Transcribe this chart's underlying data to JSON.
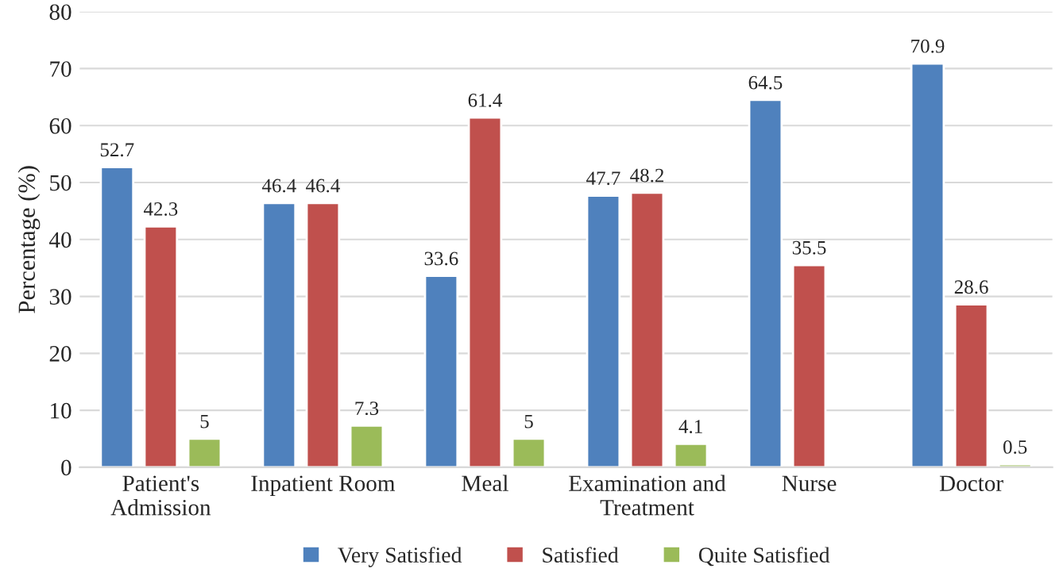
{
  "chart_data": {
    "type": "bar",
    "ylabel": "Percentage (%)",
    "categories": [
      "Patient's\nAdmission",
      "Inpatient Room",
      "Meal",
      "Examination and\nTreatment",
      "Nurse",
      "Doctor"
    ],
    "series": [
      {
        "name": "Very Satisfied",
        "color": "#4f81bd",
        "values": [
          52.7,
          46.4,
          33.6,
          47.7,
          64.5,
          70.9
        ]
      },
      {
        "name": "Satisfied",
        "color": "#c0504d",
        "values": [
          42.3,
          46.4,
          61.4,
          48.2,
          35.5,
          28.6
        ]
      },
      {
        "name": "Quite Satisfied",
        "color": "#9bbb59",
        "values": [
          5,
          7.3,
          5,
          4.1,
          null,
          0.5
        ]
      }
    ],
    "ylim": [
      0,
      80
    ],
    "yticks": [
      0,
      10,
      20,
      30,
      40,
      50,
      60,
      70,
      80
    ],
    "grid": "y",
    "legend": "bottom",
    "data_labels": true
  }
}
